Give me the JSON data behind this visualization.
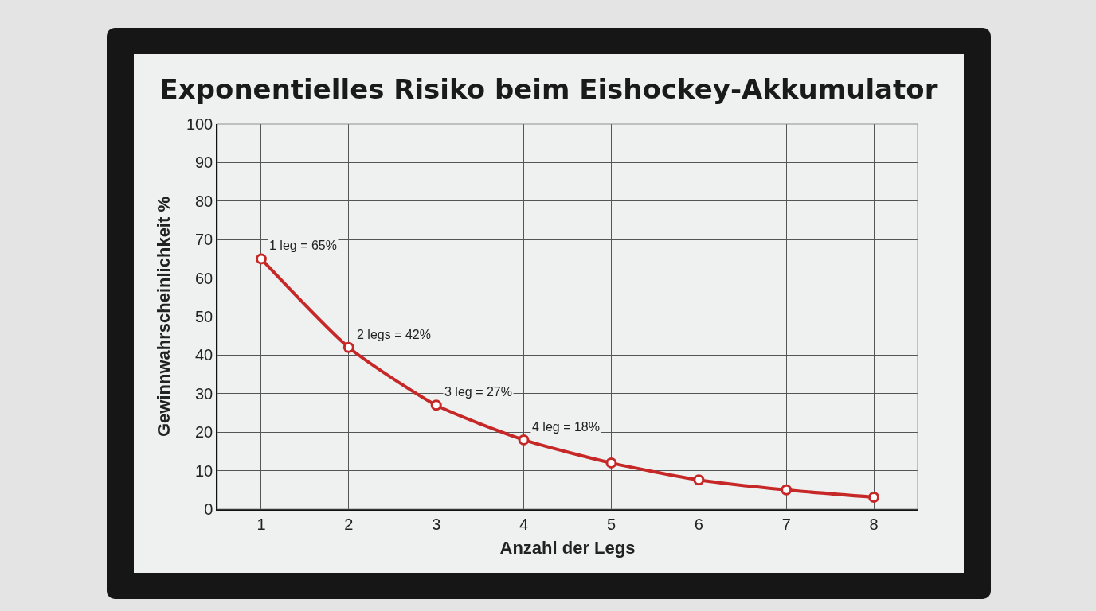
{
  "chart_data": {
    "type": "line",
    "title": "Exponentielles Risiko beim Eishockey-Akkumulator",
    "xlabel": "Anzahl der Legs",
    "ylabel": "Gewinnwahrscheinlichkeit %",
    "x": [
      1,
      2,
      3,
      4,
      5,
      6,
      7,
      8
    ],
    "series": [
      {
        "color": "#c62828",
        "values": [
          65,
          42,
          27,
          18,
          12,
          7.6,
          5,
          3.1
        ]
      }
    ],
    "xlim": [
      0.5,
      8.5
    ],
    "xticks": [
      1,
      2,
      3,
      4,
      5,
      6,
      7,
      8
    ],
    "ylim": [
      0,
      100
    ],
    "yticks": [
      0,
      10,
      20,
      30,
      40,
      50,
      60,
      70,
      80,
      90,
      100
    ],
    "grid": true,
    "legend": false,
    "marker": "circle",
    "line_style": "solid",
    "annotations": [
      {
        "text": "1 leg = 65%",
        "x": 1,
        "y": 65
      },
      {
        "text": "2 legs = 42%",
        "x": 2,
        "y": 42
      },
      {
        "text": "3 leg = 27%",
        "x": 3,
        "y": 27
      },
      {
        "text": "4 leg = 18%",
        "x": 4,
        "y": 18
      }
    ]
  }
}
